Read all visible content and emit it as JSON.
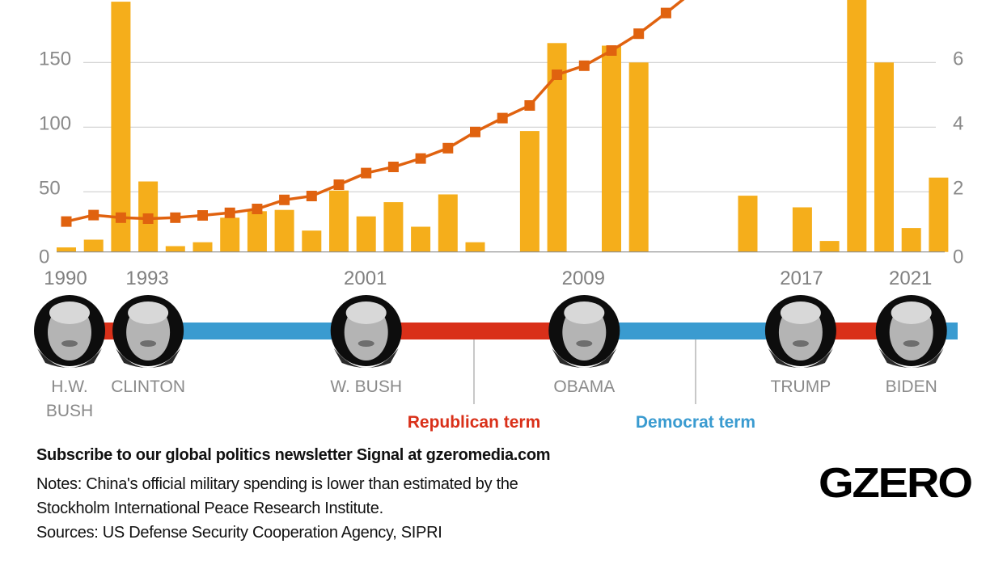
{
  "chart_data": {
    "type": "bar+line",
    "x": [
      1990,
      1991,
      1992,
      1993,
      1994,
      1995,
      1996,
      1997,
      1998,
      1999,
      2000,
      2001,
      2002,
      2003,
      2004,
      2005,
      2006,
      2007,
      2008,
      2009,
      2010,
      2011,
      2012,
      2013,
      2014,
      2015,
      2016,
      2017,
      2018,
      2019,
      2020,
      2021,
      2022
    ],
    "bar_series": {
      "axis": "left",
      "color": "#F5AE1B",
      "values": [
        7,
        13,
        197,
        58,
        8,
        11,
        30,
        35,
        36,
        20,
        51,
        31,
        42,
        23,
        48,
        11,
        0,
        97,
        165,
        0,
        163,
        150,
        0,
        0,
        0,
        47,
        0,
        38,
        12,
        200,
        150,
        22,
        61
      ]
    },
    "line_series": {
      "axis": "right",
      "color": "#E0620F",
      "x": [
        1990,
        1991,
        1992,
        1993,
        1994,
        1995,
        1996,
        1997,
        1998,
        1999,
        2000,
        2001,
        2002,
        2003,
        2004,
        2005,
        2006,
        2007,
        2008,
        2009,
        2010,
        2011,
        2012,
        2013
      ],
      "values": [
        1.08,
        1.28,
        1.2,
        1.17,
        1.2,
        1.27,
        1.35,
        1.47,
        1.75,
        1.87,
        2.22,
        2.58,
        2.77,
        3.03,
        3.35,
        3.85,
        4.28,
        4.67,
        5.62,
        5.9,
        6.37,
        6.89,
        7.53,
        8.2
      ]
    },
    "left_axis": {
      "ticks": [
        "0",
        "50",
        "100",
        "150"
      ],
      "tick_values": [
        0,
        50,
        100,
        150
      ],
      "range": [
        0,
        198
      ]
    },
    "right_axis": {
      "ticks": [
        "0",
        "2",
        "4",
        "6"
      ],
      "tick_values": [
        0,
        2,
        4,
        6
      ],
      "range": [
        0,
        7.93
      ]
    },
    "x_tick_labels": [
      {
        "year": 1990,
        "label": "1990"
      },
      {
        "year": 1993,
        "label": "1993"
      },
      {
        "year": 2001,
        "label": "2001"
      },
      {
        "year": 2009,
        "label": "2009"
      },
      {
        "year": 2017,
        "label": "2017"
      },
      {
        "year": 2021,
        "label": "2021"
      }
    ],
    "grid": true
  },
  "timeline": {
    "republican_color": "#D93019",
    "democrat_color": "#3A9BD0",
    "terms": [
      {
        "start": 1989.7,
        "end": 1992.6,
        "party": "republican"
      },
      {
        "start": 1992.6,
        "end": 2001,
        "party": "democrat"
      },
      {
        "start": 2001,
        "end": 2009,
        "party": "republican"
      },
      {
        "start": 2009,
        "end": 2017,
        "party": "democrat"
      },
      {
        "start": 2017,
        "end": 2021,
        "party": "republican"
      },
      {
        "start": 2021,
        "end": 2022.7,
        "party": "democrat"
      }
    ],
    "presidents": [
      {
        "name_lines": [
          "H.W.",
          "BUSH"
        ],
        "year": 1990
      },
      {
        "name_lines": [
          "CLINTON"
        ],
        "year": 1993
      },
      {
        "name_lines": [
          "W. BUSH"
        ],
        "year": 2001
      },
      {
        "name_lines": [
          "OBAMA"
        ],
        "year": 2009
      },
      {
        "name_lines": [
          "TRUMP"
        ],
        "year": 2017
      },
      {
        "name_lines": [
          "BIDEN"
        ],
        "year": 2021
      }
    ],
    "legend": {
      "republican": "Republican term",
      "democrat": "Democrat term"
    }
  },
  "footer": {
    "subscribe": "Subscribe to our global politics newsletter Signal at gzeromedia.com",
    "notes_line1": "Notes: China's official military spending is lower than estimated by the",
    "notes_line2": "Stockholm International Peace Research Institute.",
    "sources": "Sources: US Defense Security Cooperation Agency, SIPRI",
    "logo": "GZERO"
  }
}
